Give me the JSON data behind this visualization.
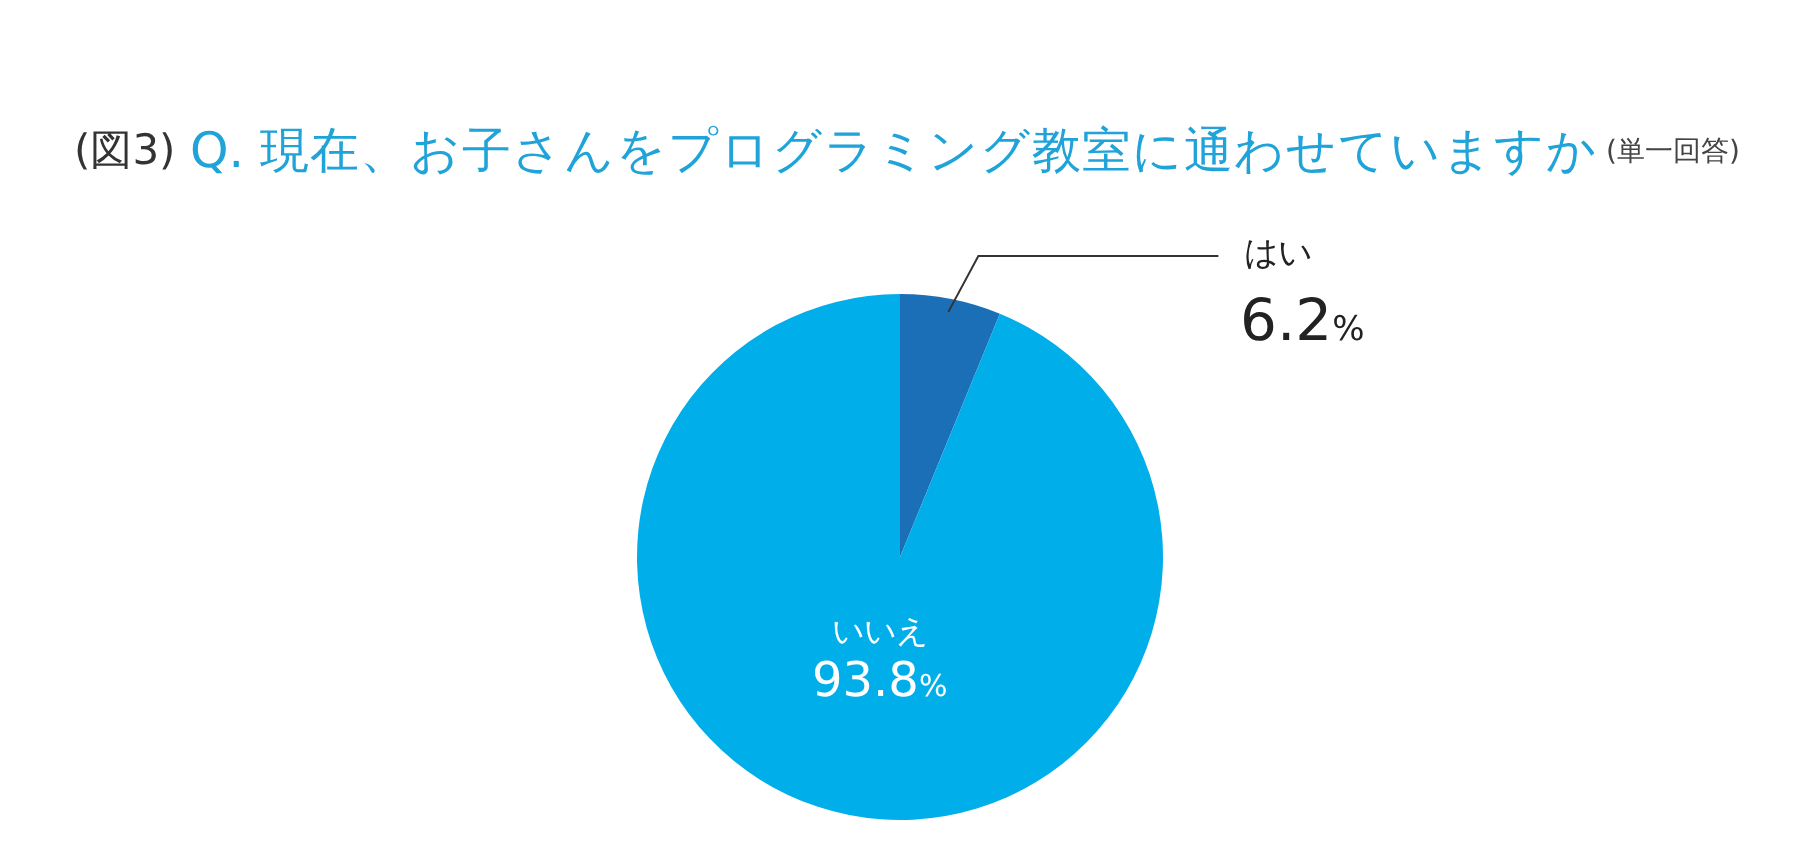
{
  "chart_data": {
    "type": "pie",
    "title": "Q. 現在、お子さんをプログラミング教室に通わせていますか",
    "subtitle": "(単一回答)",
    "annotations": [
      "(図3)"
    ],
    "categories": [
      "はい",
      "いいえ"
    ],
    "values": [
      6.2,
      93.8
    ],
    "colors": [
      "#1b6fb6",
      "#00aeea"
    ],
    "value_labels": [
      "6.2%",
      "93.8%"
    ],
    "legend": false
  }
}
